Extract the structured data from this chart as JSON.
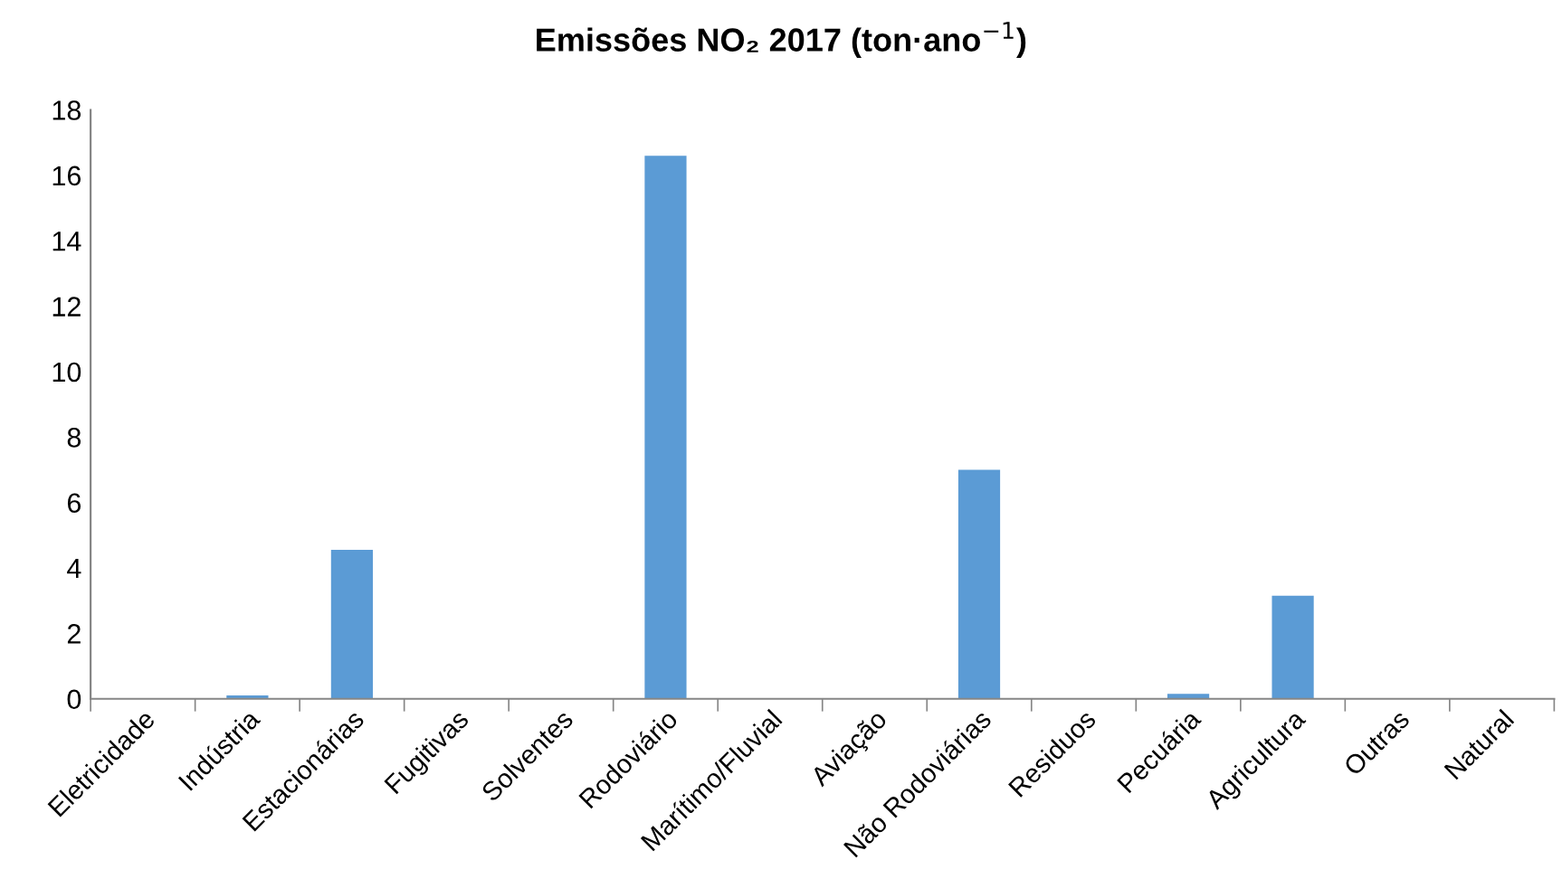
{
  "chart_data": {
    "type": "bar",
    "title": "Emissões NO₂ 2017 (ton·ano$^{−1}$)",
    "categories": [
      "Eletricidade",
      "Indústria",
      "Estacionárias",
      "Fugitivas",
      "Solventes",
      "Rodoviário",
      "Marítimo/Fluvial",
      "Aviação",
      "Não Rodoviárias",
      "Residuos",
      "Pecuária",
      "Agricultura",
      "Outras",
      "Natural"
    ],
    "values": [
      0,
      0.1,
      4.55,
      0,
      0.02,
      16.6,
      0,
      0,
      7.0,
      0,
      0.15,
      3.15,
      0,
      0
    ],
    "color": "#5b9bd5",
    "ylim": [
      0,
      18
    ],
    "yticks": [
      0,
      2,
      4,
      6,
      8,
      10,
      12,
      14,
      16,
      18
    ],
    "grid": false,
    "legend": false
  }
}
